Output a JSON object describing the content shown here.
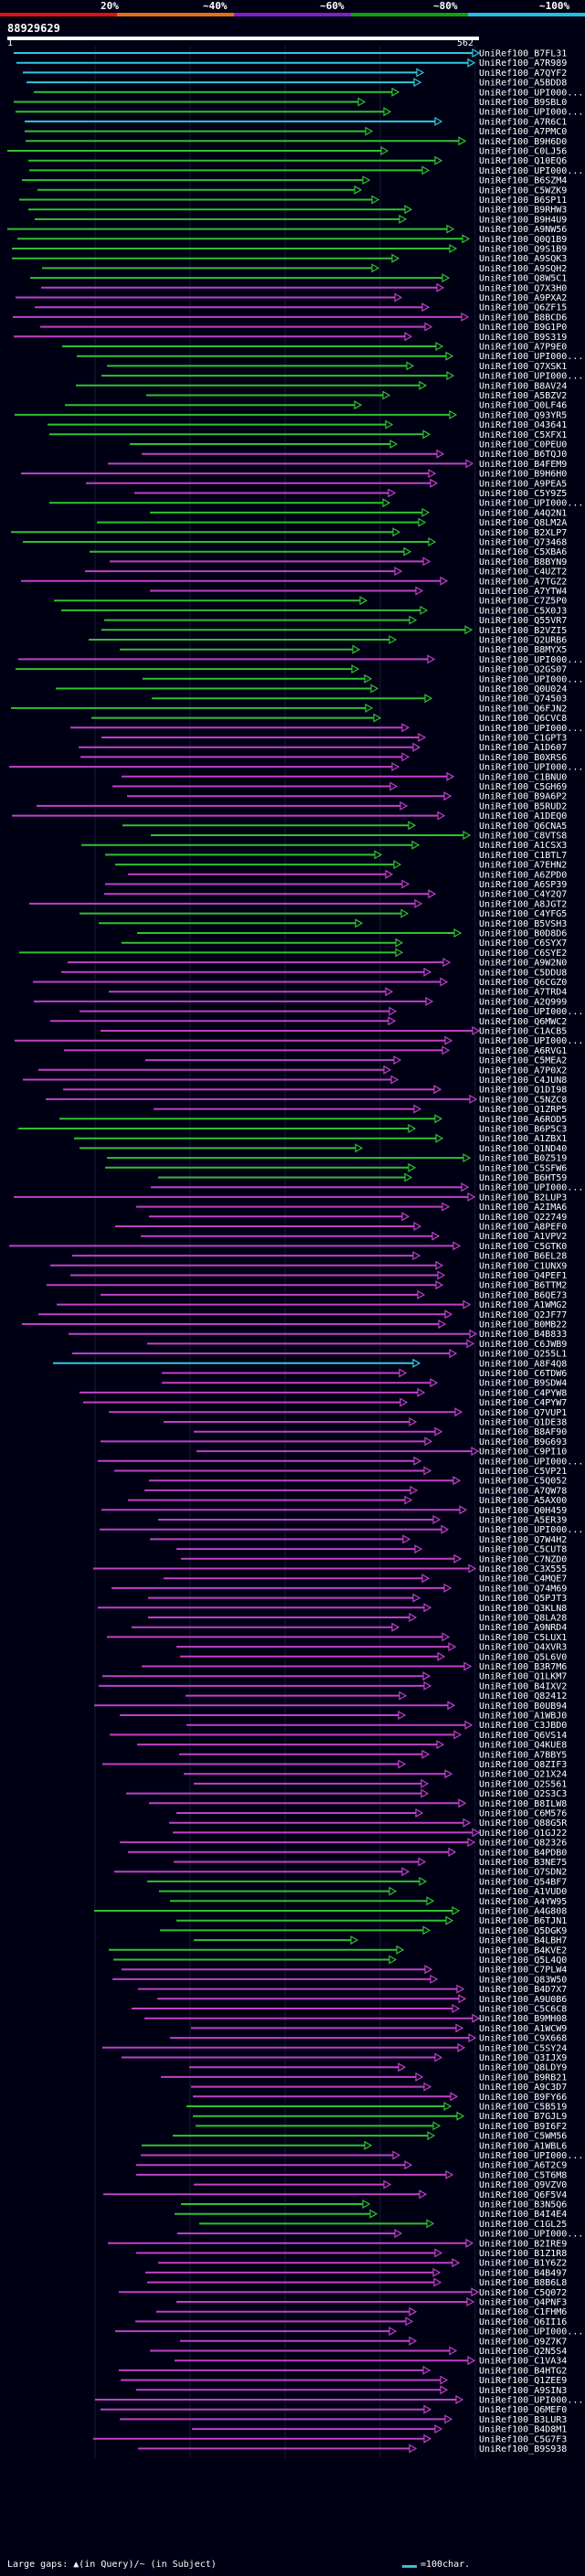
{
  "legend": {
    "labels": [
      "20%",
      "~40%",
      "~60%",
      "~80%",
      "~100%"
    ],
    "colors": [
      "#e01010",
      "#e07010",
      "#8020c0",
      "#10a010",
      "#20c0e0"
    ]
  },
  "query": {
    "id": "88929629",
    "start": "1",
    "end": "562"
  },
  "hits": [
    {
      "label": "UniRef100_B7FL31",
      "c": "cyan"
    },
    {
      "label": "UniRef100_A7R989",
      "c": "cyan"
    },
    {
      "label": "UniRef100_A7QYF2",
      "c": "cyan"
    },
    {
      "label": "UniRef100_A5BDD8",
      "c": "cyan"
    },
    {
      "label": "UniRef100_UPI000...",
      "c": "green"
    },
    {
      "label": "UniRef100_B9SBL0",
      "c": "green"
    },
    {
      "label": "UniRef100_UPI000...",
      "c": "green"
    },
    {
      "label": "UniRef100_A7R6C1",
      "c": "cyan"
    },
    {
      "label": "UniRef100_A7PMC0",
      "c": "green"
    },
    {
      "label": "UniRef100_B9H6D0",
      "c": "green"
    },
    {
      "label": "UniRef100_C0LJ56",
      "c": "green"
    },
    {
      "label": "UniRef100_Q10EQ6",
      "c": "green"
    },
    {
      "label": "UniRef100_UPI000...",
      "c": "green"
    },
    {
      "label": "UniRef100_B6SZM4",
      "c": "green"
    },
    {
      "label": "UniRef100_C5WZK9",
      "c": "green"
    },
    {
      "label": "UniRef100_B6SP11",
      "c": "green"
    },
    {
      "label": "UniRef100_B9RHW3",
      "c": "green"
    },
    {
      "label": "UniRef100_B9H4U9",
      "c": "green"
    },
    {
      "label": "UniRef100_A9NW56",
      "c": "green"
    },
    {
      "label": "UniRef100_Q0Q1B9",
      "c": "green"
    },
    {
      "label": "UniRef100_Q9S1B9",
      "c": "green"
    },
    {
      "label": "UniRef100_A9SQK3",
      "c": "green"
    },
    {
      "label": "UniRef100_A9SQH2",
      "c": "green"
    },
    {
      "label": "UniRef100_Q8W5C1",
      "c": "green"
    },
    {
      "label": "UniRef100_Q7X3H0",
      "c": "magenta"
    },
    {
      "label": "UniRef100_A9PXA2",
      "c": "magenta"
    },
    {
      "label": "UniRef100_Q6ZF15",
      "c": "magenta"
    },
    {
      "label": "UniRef100_B8BCD6",
      "c": "magenta"
    },
    {
      "label": "UniRef100_B9G1P0",
      "c": "magenta"
    },
    {
      "label": "UniRef100_B9S319",
      "c": "magenta"
    },
    {
      "label": "UniRef100_A7P9E0",
      "c": "green"
    },
    {
      "label": "UniRef100_UPI000...",
      "c": "green"
    },
    {
      "label": "UniRef100_Q7XSK1",
      "c": "green"
    },
    {
      "label": "UniRef100_UPI000...",
      "c": "green"
    },
    {
      "label": "UniRef100_B8AV24",
      "c": "green"
    },
    {
      "label": "UniRef100_A5BZV2",
      "c": "green"
    },
    {
      "label": "UniRef100_Q0LF46",
      "c": "green"
    },
    {
      "label": "UniRef100_Q93YR5",
      "c": "green"
    },
    {
      "label": "UniRef100_O43641",
      "c": "green"
    },
    {
      "label": "UniRef100_C5XFX1",
      "c": "green"
    },
    {
      "label": "UniRef100_C0PEU0",
      "c": "green"
    },
    {
      "label": "UniRef100_B6TQJ0",
      "c": "magenta"
    },
    {
      "label": "UniRef100_B4FEM9",
      "c": "magenta"
    },
    {
      "label": "UniRef100_B9H6H0",
      "c": "magenta"
    },
    {
      "label": "UniRef100_A9PEA5",
      "c": "magenta"
    },
    {
      "label": "UniRef100_C5Y9Z5",
      "c": "magenta"
    },
    {
      "label": "UniRef100_UPI000...",
      "c": "green"
    },
    {
      "label": "UniRef100_A4Q2N1",
      "c": "green"
    },
    {
      "label": "UniRef100_Q8LM2A",
      "c": "green"
    },
    {
      "label": "UniRef100_B2XLP7",
      "c": "green"
    },
    {
      "label": "UniRef100_Q73468",
      "c": "green"
    },
    {
      "label": "UniRef100_C5XBA6",
      "c": "green"
    },
    {
      "label": "UniRef100_B8BYN9",
      "c": "magenta"
    },
    {
      "label": "UniRef100_C4UZT2",
      "c": "magenta"
    },
    {
      "label": "UniRef100_A7TGZ2",
      "c": "magenta"
    },
    {
      "label": "UniRef100_A7YTW4",
      "c": "magenta"
    },
    {
      "label": "UniRef100_C7Z5P0",
      "c": "green"
    },
    {
      "label": "UniRef100_C5X0J3",
      "c": "green"
    },
    {
      "label": "UniRef100_Q55VR7",
      "c": "green"
    },
    {
      "label": "UniRef100_B2VZI5",
      "c": "green"
    },
    {
      "label": "UniRef100_Q2URB6",
      "c": "green"
    },
    {
      "label": "UniRef100_B8MYX5",
      "c": "green"
    },
    {
      "label": "UniRef100_UPI000...",
      "c": "magenta"
    },
    {
      "label": "UniRef100_Q2GS07",
      "c": "green"
    },
    {
      "label": "UniRef100_UPI000...",
      "c": "green"
    },
    {
      "label": "UniRef100_Q0U024",
      "c": "green"
    },
    {
      "label": "UniRef100_Q74503",
      "c": "green"
    },
    {
      "label": "UniRef100_Q6FJN2",
      "c": "green"
    },
    {
      "label": "UniRef100_Q6CVC8",
      "c": "green"
    },
    {
      "label": "UniRef100_UPI000...",
      "c": "magenta"
    },
    {
      "label": "UniRef100_C1GPT3",
      "c": "magenta"
    },
    {
      "label": "UniRef100_A1D607",
      "c": "magenta"
    },
    {
      "label": "UniRef100_B0XRS6",
      "c": "magenta"
    },
    {
      "label": "UniRef100_UPI000...",
      "c": "magenta"
    },
    {
      "label": "UniRef100_C1BNU0",
      "c": "magenta"
    },
    {
      "label": "UniRef100_C5GH69",
      "c": "magenta"
    },
    {
      "label": "UniRef100_B9A6P2",
      "c": "magenta"
    },
    {
      "label": "UniRef100_B5RUD2",
      "c": "magenta"
    },
    {
      "label": "UniRef100_A1DEQ0",
      "c": "magenta"
    },
    {
      "label": "UniRef100_Q6CNA5",
      "c": "green"
    },
    {
      "label": "UniRef100_C8VTS8",
      "c": "green"
    },
    {
      "label": "UniRef100_A1CSX3",
      "c": "green"
    },
    {
      "label": "UniRef100_C1BTL7",
      "c": "green"
    },
    {
      "label": "UniRef100_A7EHN2",
      "c": "green"
    },
    {
      "label": "UniRef100_A6ZPD0",
      "c": "magenta"
    },
    {
      "label": "UniRef100_A6SP39",
      "c": "magenta"
    },
    {
      "label": "UniRef100_C4Y2Q7",
      "c": "magenta"
    },
    {
      "label": "UniRef100_A8JGT2",
      "c": "magenta"
    },
    {
      "label": "UniRef100_C4YFG5",
      "c": "green"
    },
    {
      "label": "UniRef100_B5VSH3",
      "c": "green"
    },
    {
      "label": "UniRef100_B0D8D6",
      "c": "green"
    },
    {
      "label": "UniRef100_C6SYX7",
      "c": "green"
    },
    {
      "label": "UniRef100_C6SYE2",
      "c": "green"
    },
    {
      "label": "UniRef100_A9W2N0",
      "c": "magenta"
    },
    {
      "label": "UniRef100_C5DDU8",
      "c": "magenta"
    },
    {
      "label": "UniRef100_Q6CGZ0",
      "c": "magenta"
    },
    {
      "label": "UniRef100_A7TRD4",
      "c": "magenta"
    },
    {
      "label": "UniRef100_A2Q999",
      "c": "magenta"
    },
    {
      "label": "UniRef100_UPI000...",
      "c": "magenta"
    },
    {
      "label": "UniRef100_Q6MWC2",
      "c": "magenta"
    },
    {
      "label": "UniRef100_C1ACB5",
      "c": "magenta"
    },
    {
      "label": "UniRef100_UPI000...",
      "c": "magenta"
    },
    {
      "label": "UniRef100_A6RVG1",
      "c": "magenta"
    },
    {
      "label": "UniRef100_C5MEA2",
      "c": "magenta"
    },
    {
      "label": "UniRef100_A7P0X2",
      "c": "magenta"
    },
    {
      "label": "UniRef100_C4JUN8",
      "c": "magenta"
    },
    {
      "label": "UniRef100_Q1DI98",
      "c": "magenta"
    },
    {
      "label": "UniRef100_C5NZC8",
      "c": "magenta"
    },
    {
      "label": "UniRef100_Q1ZRP5",
      "c": "magenta"
    },
    {
      "label": "UniRef100_A6ROD5",
      "c": "green"
    },
    {
      "label": "UniRef100_B6P5C3",
      "c": "green"
    },
    {
      "label": "UniRef100_A1ZBX1",
      "c": "green"
    },
    {
      "label": "UniRef100_Q1ND40",
      "c": "green"
    },
    {
      "label": "UniRef100_B0Z519",
      "c": "green"
    },
    {
      "label": "UniRef100_C5SFW6",
      "c": "green"
    },
    {
      "label": "UniRef100_B6HT59",
      "c": "green"
    },
    {
      "label": "UniRef100_UPI000...",
      "c": "magenta"
    },
    {
      "label": "UniRef100_B2LUP3",
      "c": "magenta"
    },
    {
      "label": "UniRef100_A2IMA6",
      "c": "magenta"
    },
    {
      "label": "UniRef100_Q22749",
      "c": "magenta"
    },
    {
      "label": "UniRef100_A8PEF0",
      "c": "magenta"
    },
    {
      "label": "UniRef100_A1VPV2",
      "c": "magenta"
    },
    {
      "label": "UniRef100_C5GTK0",
      "c": "magenta"
    },
    {
      "label": "UniRef100_B6EL28",
      "c": "magenta"
    },
    {
      "label": "UniRef100_C1UNX9",
      "c": "magenta"
    },
    {
      "label": "UniRef100_Q4PEF1",
      "c": "magenta"
    },
    {
      "label": "UniRef100_B6TTM2",
      "c": "magenta"
    },
    {
      "label": "UniRef100_B6QE73",
      "c": "magenta"
    },
    {
      "label": "UniRef100_A1WMG2",
      "c": "magenta"
    },
    {
      "label": "UniRef100_Q2JF77",
      "c": "magenta"
    },
    {
      "label": "UniRef100_B0MB22",
      "c": "magenta"
    },
    {
      "label": "UniRef100_B4B833",
      "c": "magenta"
    },
    {
      "label": "UniRef100_C6JWB9",
      "c": "magenta"
    },
    {
      "label": "UniRef100_Q255L1",
      "c": "magenta"
    },
    {
      "label": "UniRef100_A8F4Q8",
      "c": "cyan"
    },
    {
      "label": "UniRef100_C6TDW6",
      "c": "magenta"
    },
    {
      "label": "UniRef100_B9SDW4",
      "c": "magenta"
    },
    {
      "label": "UniRef100_C4PYW8",
      "c": "magenta"
    },
    {
      "label": "UniRef100_C4PYW7",
      "c": "magenta"
    },
    {
      "label": "UniRef100_Q7VUP1",
      "c": "magenta"
    },
    {
      "label": "UniRef100_Q1DE38",
      "c": "magenta"
    },
    {
      "label": "UniRef100_B8AF90",
      "c": "magenta"
    },
    {
      "label": "UniRef100_B9G693",
      "c": "magenta"
    },
    {
      "label": "UniRef100_C9PI10",
      "c": "magenta"
    },
    {
      "label": "UniRef100_UPI000...",
      "c": "magenta"
    },
    {
      "label": "UniRef100_C5VP21",
      "c": "magenta"
    },
    {
      "label": "UniRef100_C5Q052",
      "c": "magenta"
    },
    {
      "label": "UniRef100_A7QW78",
      "c": "magenta"
    },
    {
      "label": "UniRef100_A5AX00",
      "c": "magenta"
    },
    {
      "label": "UniRef100_Q0H459",
      "c": "magenta"
    },
    {
      "label": "UniRef100_A5ER39",
      "c": "magenta"
    },
    {
      "label": "UniRef100_UPI000...",
      "c": "magenta"
    },
    {
      "label": "UniRef100_Q7W4H2",
      "c": "magenta"
    },
    {
      "label": "UniRef100_C5CUT8",
      "c": "magenta"
    },
    {
      "label": "UniRef100_C7NZD0",
      "c": "magenta"
    },
    {
      "label": "UniRef100_C3X555",
      "c": "magenta"
    },
    {
      "label": "UniRef100_C4MQE7",
      "c": "magenta"
    },
    {
      "label": "UniRef100_Q74M69",
      "c": "magenta"
    },
    {
      "label": "UniRef100_Q5PJT3",
      "c": "magenta"
    },
    {
      "label": "UniRef100_Q3KLN8",
      "c": "magenta"
    },
    {
      "label": "UniRef100_Q8LA28",
      "c": "magenta"
    },
    {
      "label": "UniRef100_A9NRD4",
      "c": "magenta"
    },
    {
      "label": "UniRef100_C5LUX1",
      "c": "magenta"
    },
    {
      "label": "UniRef100_Q4XVR3",
      "c": "magenta"
    },
    {
      "label": "UniRef100_Q5L6V0",
      "c": "magenta"
    },
    {
      "label": "UniRef100_B3R7M6",
      "c": "magenta"
    },
    {
      "label": "UniRef100_Q1LKM7",
      "c": "magenta"
    },
    {
      "label": "UniRef100_B4IXV2",
      "c": "magenta"
    },
    {
      "label": "UniRef100_Q82412",
      "c": "magenta"
    },
    {
      "label": "UniRef100_B0UB94",
      "c": "magenta"
    },
    {
      "label": "UniRef100_A1WBJ0",
      "c": "magenta"
    },
    {
      "label": "UniRef100_C3JBD0",
      "c": "magenta"
    },
    {
      "label": "UniRef100_Q6VS14",
      "c": "magenta"
    },
    {
      "label": "UniRef100_Q4KUE8",
      "c": "magenta"
    },
    {
      "label": "UniRef100_A7BBY5",
      "c": "magenta"
    },
    {
      "label": "UniRef100_Q8ZIF3",
      "c": "magenta"
    },
    {
      "label": "UniRef100_Q21X24",
      "c": "magenta"
    },
    {
      "label": "UniRef100_Q2S561",
      "c": "magenta"
    },
    {
      "label": "UniRef100_Q2S3C3",
      "c": "magenta"
    },
    {
      "label": "UniRef100_B8ILW8",
      "c": "magenta"
    },
    {
      "label": "UniRef100_C6M576",
      "c": "magenta"
    },
    {
      "label": "UniRef100_Q88G5R",
      "c": "magenta"
    },
    {
      "label": "UniRef100_Q1GJ22",
      "c": "magenta"
    },
    {
      "label": "UniRef100_Q82326",
      "c": "magenta"
    },
    {
      "label": "UniRef100_B4PDB0",
      "c": "magenta"
    },
    {
      "label": "UniRef100_B3NE75",
      "c": "magenta"
    },
    {
      "label": "UniRef100_Q7SDN2",
      "c": "magenta"
    },
    {
      "label": "UniRef100_Q54BF7",
      "c": "green"
    },
    {
      "label": "UniRef100_A1VUD0",
      "c": "green"
    },
    {
      "label": "UniRef100_A4YW95",
      "c": "green"
    },
    {
      "label": "UniRef100_A4G808",
      "c": "green"
    },
    {
      "label": "UniRef100_B6TJN1",
      "c": "green"
    },
    {
      "label": "UniRef100_Q5DGK9",
      "c": "green"
    },
    {
      "label": "UniRef100_B4LBH7",
      "c": "green"
    },
    {
      "label": "UniRef100_B4KVE2",
      "c": "green"
    },
    {
      "label": "UniRef100_Q5L4Q0",
      "c": "green"
    },
    {
      "label": "UniRef100_C7PLW4",
      "c": "magenta"
    },
    {
      "label": "UniRef100_Q83W50",
      "c": "magenta"
    },
    {
      "label": "UniRef100_B4D7X7",
      "c": "magenta"
    },
    {
      "label": "UniRef100_A9U0B6",
      "c": "magenta"
    },
    {
      "label": "UniRef100_C5C6C8",
      "c": "magenta"
    },
    {
      "label": "UniRef100_B9MH08",
      "c": "magenta"
    },
    {
      "label": "UniRef100_A1WCW9",
      "c": "magenta"
    },
    {
      "label": "UniRef100_C9X668",
      "c": "magenta"
    },
    {
      "label": "UniRef100_C5SY24",
      "c": "magenta"
    },
    {
      "label": "UniRef100_Q3IJX9",
      "c": "magenta"
    },
    {
      "label": "UniRef100_Q8LDY9",
      "c": "magenta"
    },
    {
      "label": "UniRef100_B9RB21",
      "c": "magenta"
    },
    {
      "label": "UniRef100_A9C3D7",
      "c": "magenta"
    },
    {
      "label": "UniRef100_B9FY66",
      "c": "magenta"
    },
    {
      "label": "UniRef100_C5B519",
      "c": "green"
    },
    {
      "label": "UniRef100_B7GJL9",
      "c": "green"
    },
    {
      "label": "UniRef100_B9I6F2",
      "c": "green"
    },
    {
      "label": "UniRef100_C5WM56",
      "c": "green"
    },
    {
      "label": "UniRef100_A1WBL6",
      "c": "green"
    },
    {
      "label": "UniRef100_UPI000...",
      "c": "magenta"
    },
    {
      "label": "UniRef100_A6T2C9",
      "c": "magenta"
    },
    {
      "label": "UniRef100_C5T6M8",
      "c": "magenta"
    },
    {
      "label": "UniRef100_Q9VZV0",
      "c": "magenta"
    },
    {
      "label": "UniRef100_Q6F5V4",
      "c": "magenta"
    },
    {
      "label": "UniRef100_B3N5Q6",
      "c": "green"
    },
    {
      "label": "UniRef100_B4I4E4",
      "c": "green"
    },
    {
      "label": "UniRef100_C1GL25",
      "c": "green"
    },
    {
      "label": "UniRef100_UPI000...",
      "c": "magenta"
    },
    {
      "label": "UniRef100_B2IRE9",
      "c": "magenta"
    },
    {
      "label": "UniRef100_B1Z1R8",
      "c": "magenta"
    },
    {
      "label": "UniRef100_B1Y6Z2",
      "c": "magenta"
    },
    {
      "label": "UniRef100_B4B497",
      "c": "magenta"
    },
    {
      "label": "UniRef100_B8B6L8",
      "c": "magenta"
    },
    {
      "label": "UniRef100_C5Q072",
      "c": "magenta"
    },
    {
      "label": "UniRef100_Q4PNF3",
      "c": "magenta"
    },
    {
      "label": "UniRef100_C1FHM6",
      "c": "magenta"
    },
    {
      "label": "UniRef100_Q6II16",
      "c": "magenta"
    },
    {
      "label": "UniRef100_UPI000...",
      "c": "magenta"
    },
    {
      "label": "UniRef100_Q9Z7K7",
      "c": "magenta"
    },
    {
      "label": "UniRef100_Q2N5S4",
      "c": "magenta"
    },
    {
      "label": "UniRef100_C1VA34",
      "c": "magenta"
    },
    {
      "label": "UniRef100_B4HTG2",
      "c": "magenta"
    },
    {
      "label": "UniRef100_Q1ZEE9",
      "c": "magenta"
    },
    {
      "label": "UniRef100_A9SIN3",
      "c": "magenta"
    },
    {
      "label": "UniRef100_UPI000...",
      "c": "magenta"
    },
    {
      "label": "UniRef100_Q6MEF0",
      "c": "magenta"
    },
    {
      "label": "UniRef100_B3LUR3",
      "c": "magenta"
    },
    {
      "label": "UniRef100_B4D8M1",
      "c": "magenta"
    },
    {
      "label": "UniRef100_C5G7F3",
      "c": "magenta"
    },
    {
      "label": "UniRef100_B9S938",
      "c": "magenta"
    }
  ],
  "footer": {
    "gaps_text": "Large gaps: ▲(in Query)/~ (in Subject)",
    "scale_text": "=100char."
  }
}
